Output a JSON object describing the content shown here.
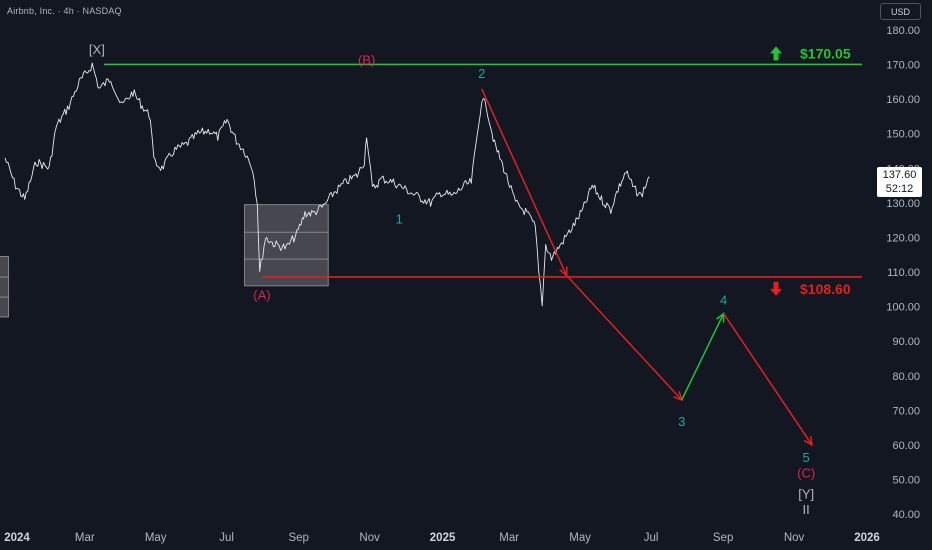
{
  "header": {
    "symbol": "Airbnb, Inc. · 4h · NASDAQ"
  },
  "currency": "USD",
  "price_box": {
    "price": "137.60",
    "countdown": "52:12"
  },
  "colors": {
    "background": "#131722",
    "candles": "#d1d4dc",
    "green": "#22c534",
    "red": "#e2211d",
    "wave_green": "#26a69a",
    "wave_red": "#d6264f",
    "gray_label": "#b2b5be"
  },
  "chart_data": {
    "type": "line",
    "title": "",
    "xlabel": "",
    "ylabel": "",
    "x_ticks": [
      "2024",
      "Mar",
      "May",
      "Jul",
      "Sep",
      "Nov",
      "2025",
      "Mar",
      "May",
      "Jul",
      "Sep",
      "Nov",
      "2026"
    ],
    "y_ticks": [
      "180.00",
      "170.00",
      "160.00",
      "150.00",
      "140.00",
      "130.00",
      "120.00",
      "110.00",
      "100.00",
      "90.00",
      "80.00",
      "70.00",
      "60.00",
      "50.00",
      "40.00"
    ],
    "ylim": [
      38,
      184
    ],
    "xlim": [
      "2024-01-01",
      "2026-01-01"
    ],
    "series": [
      {
        "values": [
          [
            "2024-01-01",
            143
          ],
          [
            "2024-01-10",
            135
          ],
          [
            "2024-01-18",
            131
          ],
          [
            "2024-01-28",
            142
          ],
          [
            "2024-02-08",
            140
          ],
          [
            "2024-02-14",
            152
          ],
          [
            "2024-02-25",
            158
          ],
          [
            "2024-03-05",
            165
          ],
          [
            "2024-03-12",
            168
          ],
          [
            "2024-03-16",
            170
          ],
          [
            "2024-03-22",
            163
          ],
          [
            "2024-04-01",
            166
          ],
          [
            "2024-04-10",
            158
          ],
          [
            "2024-04-20",
            162
          ],
          [
            "2024-04-28",
            158
          ],
          [
            "2024-05-05",
            155
          ],
          [
            "2024-05-08",
            142
          ],
          [
            "2024-05-15",
            140
          ],
          [
            "2024-05-25",
            145
          ],
          [
            "2024-06-05",
            147
          ],
          [
            "2024-06-15",
            150
          ],
          [
            "2024-06-25",
            151
          ],
          [
            "2024-07-02",
            149
          ],
          [
            "2024-07-10",
            154
          ],
          [
            "2024-07-18",
            148
          ],
          [
            "2024-07-25",
            145
          ],
          [
            "2024-08-01",
            140
          ],
          [
            "2024-08-05",
            130
          ],
          [
            "2024-08-07",
            110
          ],
          [
            "2024-08-12",
            120
          ],
          [
            "2024-08-20",
            118
          ],
          [
            "2024-08-30",
            117
          ],
          [
            "2024-09-08",
            121
          ],
          [
            "2024-09-15",
            127
          ],
          [
            "2024-09-22",
            127
          ],
          [
            "2024-10-01",
            129
          ],
          [
            "2024-10-10",
            133
          ],
          [
            "2024-10-20",
            136
          ],
          [
            "2024-10-30",
            138
          ],
          [
            "2024-11-05",
            142
          ],
          [
            "2024-11-07",
            150
          ],
          [
            "2024-11-12",
            134
          ],
          [
            "2024-11-20",
            137
          ],
          [
            "2024-11-30",
            136
          ],
          [
            "2024-12-10",
            134
          ],
          [
            "2024-12-20",
            132
          ],
          [
            "2025-01-01",
            130
          ],
          [
            "2025-01-10",
            133
          ],
          [
            "2025-01-20",
            132
          ],
          [
            "2025-01-30",
            135
          ],
          [
            "2025-02-05",
            136
          ],
          [
            "2025-02-14",
            160
          ],
          [
            "2025-02-18",
            158
          ],
          [
            "2025-02-25",
            147
          ],
          [
            "2025-03-05",
            140
          ],
          [
            "2025-03-15",
            130
          ],
          [
            "2025-03-25",
            127
          ],
          [
            "2025-04-01",
            123
          ],
          [
            "2025-04-04",
            110
          ],
          [
            "2025-04-07",
            101
          ],
          [
            "2025-04-10",
            118
          ],
          [
            "2025-04-15",
            114
          ],
          [
            "2025-04-25",
            119
          ],
          [
            "2025-05-05",
            124
          ],
          [
            "2025-05-12",
            128
          ],
          [
            "2025-05-20",
            135
          ],
          [
            "2025-05-28",
            131
          ],
          [
            "2025-06-05",
            128
          ],
          [
            "2025-06-10",
            133
          ],
          [
            "2025-06-18",
            139
          ],
          [
            "2025-06-25",
            134
          ],
          [
            "2025-07-01",
            132
          ],
          [
            "2025-07-08",
            137.6
          ]
        ]
      }
    ],
    "levels": [
      {
        "label": "$170.05",
        "value": 170.05,
        "direction": "up"
      },
      {
        "label": "$108.60",
        "value": 108.6,
        "direction": "down"
      }
    ],
    "projection": [
      {
        "from": [
          "2025-02-14",
          163
        ],
        "to": [
          "2025-04-28",
          109
        ],
        "color": "red"
      },
      {
        "from": [
          "2025-04-28",
          109
        ],
        "to": [
          "2025-08-05",
          73
        ],
        "color": "red"
      },
      {
        "from": [
          "2025-08-05",
          73
        ],
        "to": [
          "2025-09-10",
          98
        ],
        "color": "green"
      },
      {
        "from": [
          "2025-09-10",
          98
        ],
        "to": [
          "2025-11-25",
          60
        ],
        "color": "red"
      }
    ],
    "wave_labels": [
      {
        "text": "[X]",
        "x": "2024-03-20",
        "y": 174.5,
        "color": "gray"
      },
      {
        "text": "(B)",
        "x": "2024-11-07",
        "y": 171.5,
        "color": "red"
      },
      {
        "text": "2",
        "x": "2025-02-14",
        "y": 167.5,
        "color": "green"
      },
      {
        "text": "1",
        "x": "2024-12-05",
        "y": 125.5,
        "color": "green"
      },
      {
        "text": "(A)",
        "x": "2024-08-09",
        "y": 103.5,
        "color": "red"
      },
      {
        "text": "4",
        "x": "2025-09-10",
        "y": 102,
        "color": "green"
      },
      {
        "text": "3",
        "x": "2025-08-05",
        "y": 67,
        "color": "green"
      },
      {
        "text": "5",
        "x": "2025-11-20",
        "y": 56.5,
        "color": "green"
      },
      {
        "text": "(C)",
        "x": "2025-11-20",
        "y": 52,
        "color": "red"
      },
      {
        "text": "[Y]",
        "x": "2025-11-20",
        "y": 46,
        "color": "gray"
      },
      {
        "text": "II",
        "x": "2025-11-20",
        "y": 41.5,
        "color": "gray"
      }
    ],
    "zones": [
      {
        "x0": "2024-07-25",
        "x1": "2024-10-05",
        "y0": 106,
        "y1": 129.5
      },
      {
        "x0": "2023-12-10",
        "x1": "2024-01-04",
        "y0": 97,
        "y1": 114.5
      }
    ]
  }
}
